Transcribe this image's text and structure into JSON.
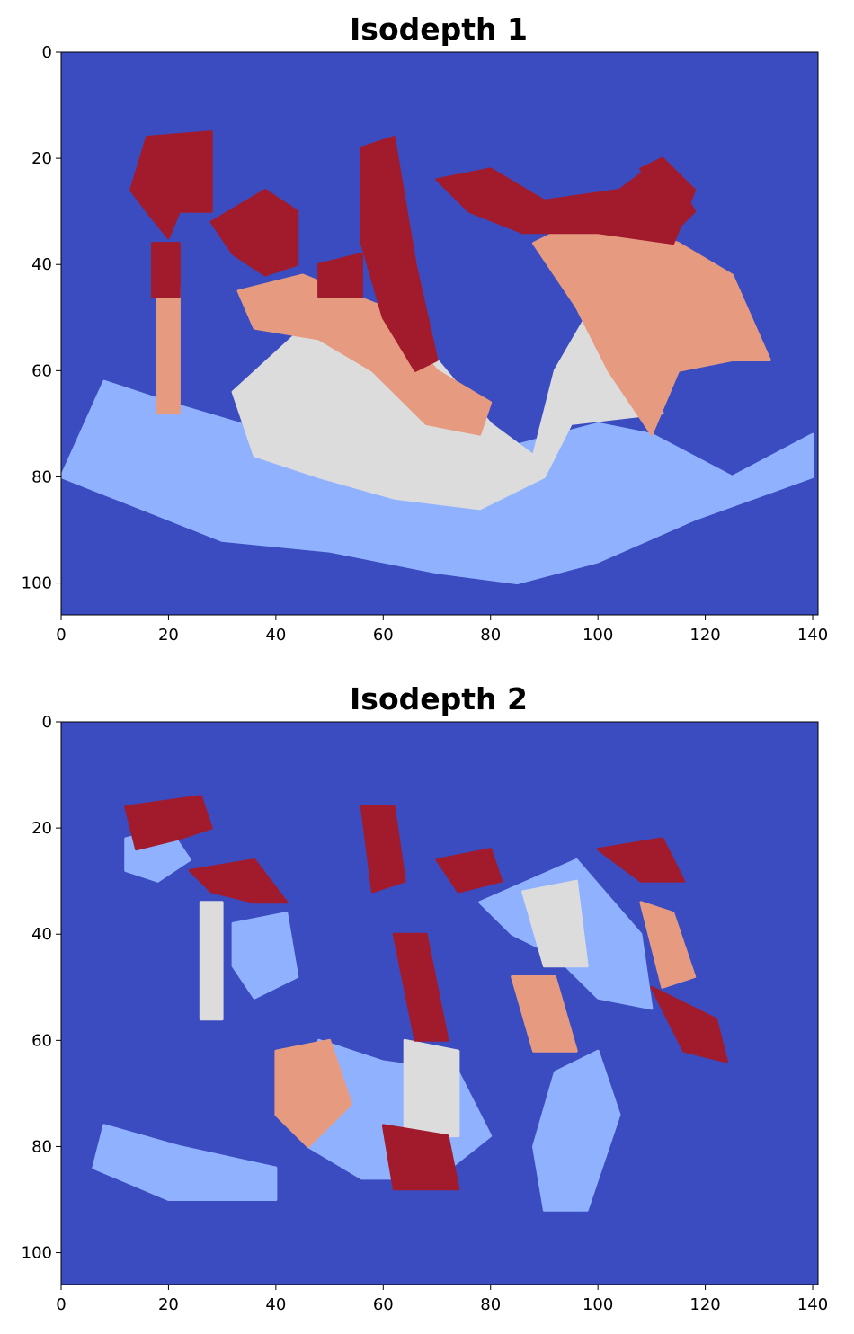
{
  "chart_data": [
    {
      "type": "heatmap",
      "title": "Isodepth 1",
      "xlabel": "",
      "ylabel": "",
      "xlim": [
        0,
        141
      ],
      "ylim": [
        106,
        0
      ],
      "xticks": [
        "0",
        "20",
        "40",
        "60",
        "80",
        "100",
        "120",
        "140"
      ],
      "yticks": [
        "0",
        "20",
        "40",
        "60",
        "80",
        "100"
      ],
      "grid": false,
      "colormap": "coolwarm",
      "levels": 5,
      "level_colors": [
        "#3b4cc0",
        "#90b2fe",
        "#dddcdc",
        "#e69b80",
        "#a11b2c"
      ],
      "background_color": "#3b4cc0",
      "note_data": "Discrete isodepth map: upper structures dark red, then salmon, light gray, light blue toward bottom."
    },
    {
      "type": "heatmap",
      "title": "Isodepth 2",
      "xlabel": "",
      "ylabel": "",
      "xlim": [
        0,
        141
      ],
      "ylim": [
        106,
        0
      ],
      "xticks": [
        "0",
        "20",
        "40",
        "60",
        "80",
        "100",
        "120",
        "140"
      ],
      "yticks": [
        "0",
        "20",
        "40",
        "60",
        "80",
        "100"
      ],
      "grid": false,
      "colormap": "coolwarm",
      "levels": 5,
      "level_colors": [
        "#3b4cc0",
        "#90b2fe",
        "#dddcdc",
        "#e69b80",
        "#a11b2c"
      ],
      "background_color": "#3b4cc0"
    }
  ]
}
